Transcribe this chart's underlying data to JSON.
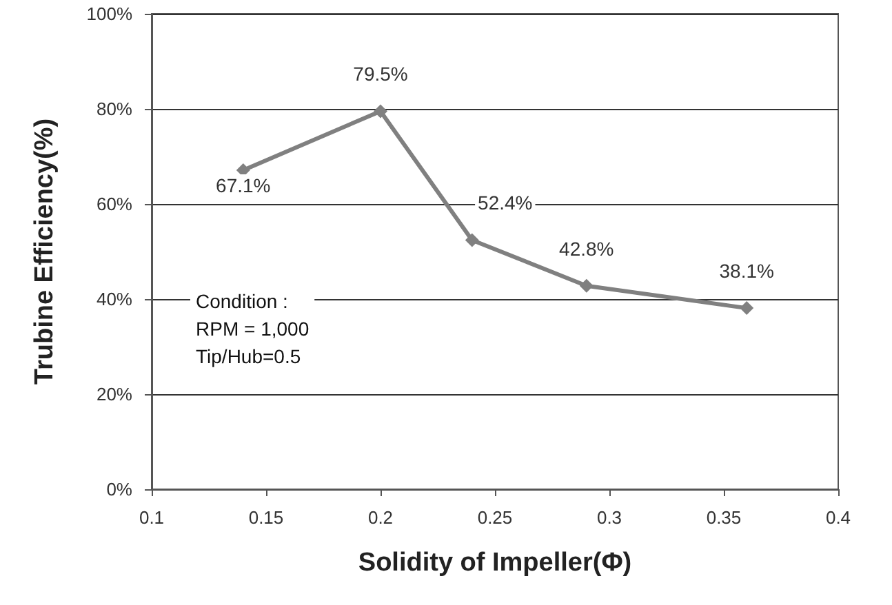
{
  "chart_data": {
    "type": "line",
    "xlabel": "Solidity of Impeller(Φ)",
    "ylabel": "Trubine Efficiency(%)",
    "x": [
      0.14,
      0.2,
      0.24,
      0.29,
      0.36
    ],
    "series": [
      {
        "color": "#808080",
        "values": [
          67.1,
          79.5,
          52.4,
          42.8,
          38.1
        ],
        "value_labels": [
          "67.1%",
          "79.5%",
          "52.4%",
          "42.8%",
          "38.1%"
        ]
      }
    ],
    "xlim": [
      0.1,
      0.4
    ],
    "xticks": [
      0.1,
      0.15,
      0.2,
      0.25,
      0.3,
      0.35,
      0.4
    ],
    "ylim": [
      0,
      100
    ],
    "yticks": [
      {
        "value": 0,
        "label": "0%"
      },
      {
        "value": 20,
        "label": "20%"
      },
      {
        "value": 40,
        "label": "40%"
      },
      {
        "value": 60,
        "label": "60%"
      },
      {
        "value": 80,
        "label": "80%"
      },
      {
        "value": 100,
        "label": "100%"
      }
    ],
    "annotations": [
      "Condition :\nRPM = 1,000\nTip/Hub=0.5"
    ],
    "grid": "y",
    "marker": "diamond",
    "line_style": "solid"
  }
}
